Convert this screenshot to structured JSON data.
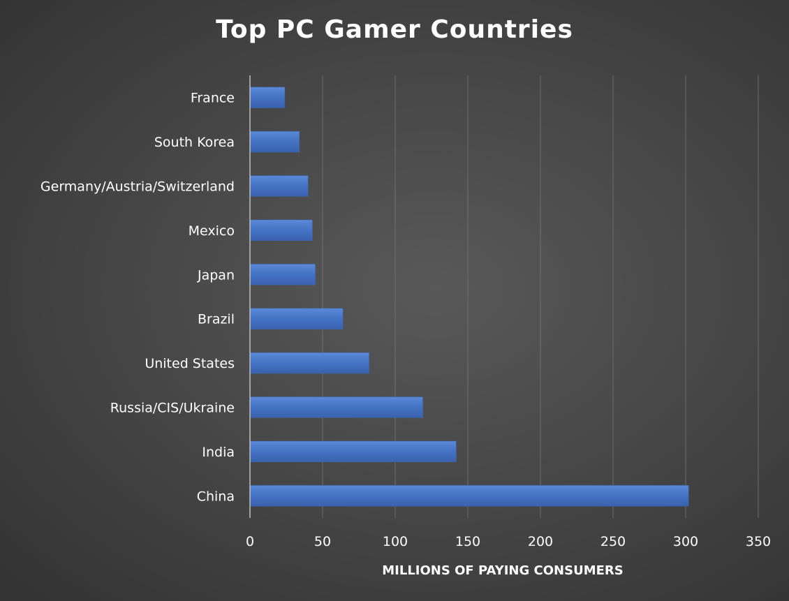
{
  "chart_data": {
    "type": "bar",
    "orientation": "horizontal",
    "title": "Top PC Gamer Countries",
    "xlabel": "MILLIONS OF PAYING CONSUMERS",
    "ylabel": "",
    "categories": [
      "China",
      "India",
      "Russia/CIS/Ukraine",
      "United States",
      "Brazil",
      "Japan",
      "Mexico",
      "Germany/Austria/Switzerland",
      "South Korea",
      "France"
    ],
    "values": [
      302,
      142,
      119,
      82,
      64,
      45,
      43,
      40,
      34,
      24
    ],
    "xlim": [
      0,
      350
    ],
    "xticks": [
      0,
      50,
      100,
      150,
      200,
      250,
      300,
      350
    ],
    "grid": "vertical",
    "legend": "none",
    "colors": {
      "bar": "#4472C4",
      "grid": "#6e6e6e",
      "text": "#ffffff"
    }
  }
}
